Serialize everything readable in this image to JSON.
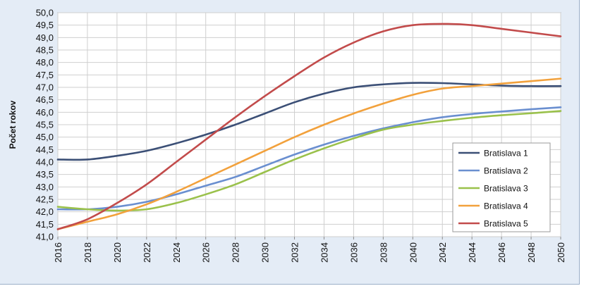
{
  "chart_data": {
    "type": "line",
    "ylabel": "Počet rokov",
    "xlabel": "",
    "ylim": [
      41.0,
      50.0
    ],
    "y_ticks": [
      "41,0",
      "41,5",
      "42,0",
      "42,5",
      "43,0",
      "43,5",
      "44,0",
      "44,5",
      "45,0",
      "45,5",
      "46,0",
      "46,5",
      "47,0",
      "47,5",
      "48,0",
      "48,5",
      "49,0",
      "49,5",
      "50,0"
    ],
    "x_ticks": [
      "2016",
      "2018",
      "2020",
      "2022",
      "2024",
      "2026",
      "2028",
      "2030",
      "2032",
      "2034",
      "2036",
      "2038",
      "2040",
      "2042",
      "2044",
      "2046",
      "2048",
      "2050"
    ],
    "x": [
      2016,
      2018,
      2020,
      2022,
      2024,
      2026,
      2028,
      2030,
      2032,
      2034,
      2036,
      2038,
      2040,
      2042,
      2044,
      2046,
      2048,
      2050
    ],
    "grid": true,
    "legend_position": "bottom-right",
    "series": [
      {
        "name": "Bratislava 1",
        "color": "#3b4f76",
        "values": [
          44.1,
          44.1,
          44.25,
          44.45,
          44.75,
          45.1,
          45.5,
          45.95,
          46.4,
          46.75,
          47.0,
          47.12,
          47.18,
          47.17,
          47.12,
          47.07,
          47.05,
          47.05
        ]
      },
      {
        "name": "Bratislava 2",
        "color": "#6a8fd0",
        "values": [
          42.1,
          42.1,
          42.2,
          42.4,
          42.7,
          43.05,
          43.4,
          43.85,
          44.3,
          44.7,
          45.05,
          45.35,
          45.6,
          45.8,
          45.93,
          46.03,
          46.12,
          46.2
        ]
      },
      {
        "name": "Bratislava 3",
        "color": "#9ac14b",
        "values": [
          42.2,
          42.1,
          42.05,
          42.1,
          42.35,
          42.7,
          43.1,
          43.6,
          44.1,
          44.55,
          44.95,
          45.3,
          45.5,
          45.65,
          45.78,
          45.88,
          45.96,
          46.05
        ]
      },
      {
        "name": "Bratislava 4",
        "color": "#f2a13c",
        "values": [
          41.3,
          41.6,
          41.9,
          42.3,
          42.8,
          43.35,
          43.9,
          44.45,
          45.0,
          45.5,
          45.95,
          46.35,
          46.7,
          46.95,
          47.05,
          47.15,
          47.25,
          47.35
        ]
      },
      {
        "name": "Bratislava 5",
        "color": "#c24b4b",
        "values": [
          41.3,
          41.7,
          42.35,
          43.1,
          44.0,
          44.9,
          45.8,
          46.65,
          47.45,
          48.2,
          48.8,
          49.25,
          49.5,
          49.55,
          49.5,
          49.35,
          49.2,
          49.05
        ]
      }
    ]
  }
}
